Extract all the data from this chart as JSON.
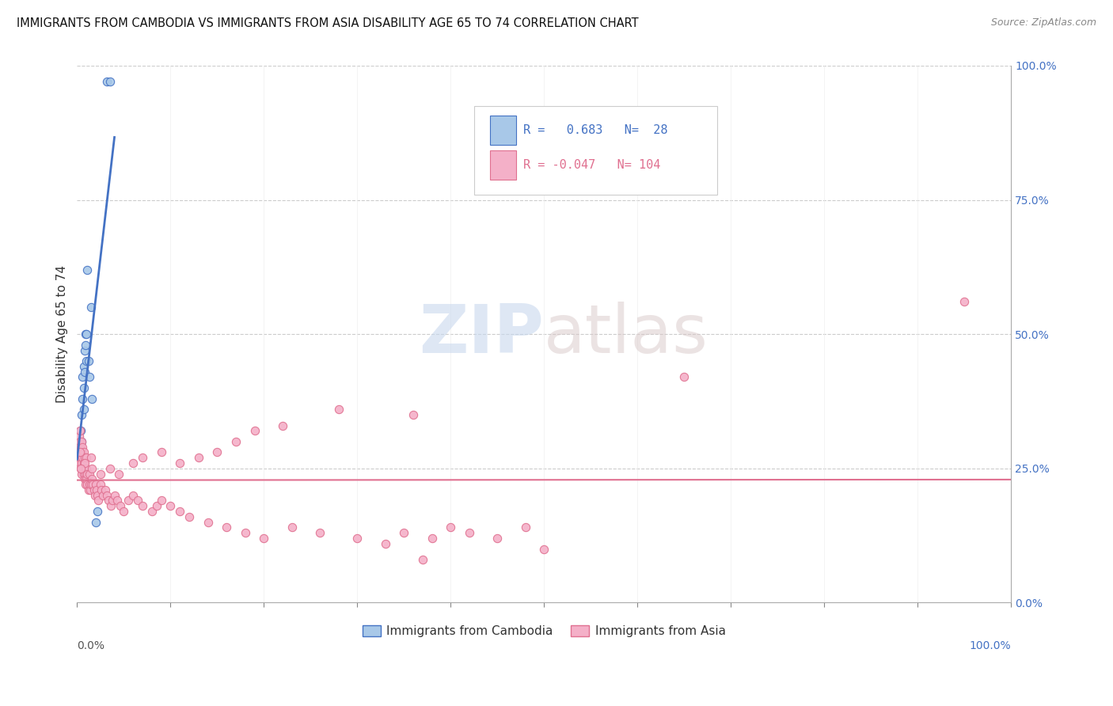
{
  "title": "IMMIGRANTS FROM CAMBODIA VS IMMIGRANTS FROM ASIA DISABILITY AGE 65 TO 74 CORRELATION CHART",
  "source": "Source: ZipAtlas.com",
  "ylabel": "Disability Age 65 to 74",
  "legend_labels": [
    "Immigrants from Cambodia",
    "Immigrants from Asia"
  ],
  "r1": 0.683,
  "n1": 28,
  "r2": -0.047,
  "n2": 104,
  "color_cambodia": "#a8c8e8",
  "color_asia": "#f4b0c8",
  "color_line_cambodia": "#4472c4",
  "color_line_asia": "#e07090",
  "background_color": "#ffffff",
  "xlim": [
    0.0,
    1.0
  ],
  "ylim": [
    0.0,
    1.0
  ],
  "cambodia_x": [
    0.003,
    0.003,
    0.003,
    0.004,
    0.004,
    0.005,
    0.005,
    0.005,
    0.006,
    0.006,
    0.007,
    0.007,
    0.007,
    0.008,
    0.008,
    0.009,
    0.009,
    0.01,
    0.01,
    0.011,
    0.012,
    0.013,
    0.015,
    0.016,
    0.02,
    0.022,
    0.032,
    0.035
  ],
  "cambodia_y": [
    0.27,
    0.3,
    0.28,
    0.29,
    0.32,
    0.35,
    0.3,
    0.28,
    0.38,
    0.42,
    0.44,
    0.4,
    0.36,
    0.47,
    0.43,
    0.48,
    0.5,
    0.45,
    0.5,
    0.62,
    0.45,
    0.42,
    0.55,
    0.38,
    0.15,
    0.17,
    0.97,
    0.97
  ],
  "asia_x": [
    0.001,
    0.001,
    0.002,
    0.002,
    0.002,
    0.003,
    0.003,
    0.003,
    0.003,
    0.004,
    0.004,
    0.004,
    0.005,
    0.005,
    0.005,
    0.005,
    0.006,
    0.006,
    0.006,
    0.007,
    0.007,
    0.007,
    0.008,
    0.008,
    0.008,
    0.009,
    0.009,
    0.01,
    0.01,
    0.01,
    0.011,
    0.011,
    0.012,
    0.013,
    0.013,
    0.014,
    0.015,
    0.016,
    0.016,
    0.017,
    0.018,
    0.019,
    0.02,
    0.021,
    0.022,
    0.023,
    0.025,
    0.026,
    0.028,
    0.03,
    0.032,
    0.034,
    0.036,
    0.038,
    0.04,
    0.043,
    0.046,
    0.05,
    0.055,
    0.06,
    0.065,
    0.07,
    0.08,
    0.085,
    0.09,
    0.1,
    0.11,
    0.12,
    0.14,
    0.16,
    0.18,
    0.2,
    0.23,
    0.26,
    0.3,
    0.33,
    0.35,
    0.38,
    0.4,
    0.42,
    0.45,
    0.48,
    0.5,
    0.36,
    0.28,
    0.22,
    0.19,
    0.17,
    0.15,
    0.13,
    0.11,
    0.09,
    0.07,
    0.06,
    0.045,
    0.035,
    0.025,
    0.015,
    0.008,
    0.004,
    0.003,
    0.37,
    0.65,
    0.95
  ],
  "asia_y": [
    0.28,
    0.3,
    0.27,
    0.29,
    0.31,
    0.26,
    0.28,
    0.3,
    0.32,
    0.25,
    0.27,
    0.29,
    0.24,
    0.26,
    0.28,
    0.3,
    0.25,
    0.27,
    0.29,
    0.24,
    0.26,
    0.28,
    0.23,
    0.25,
    0.27,
    0.22,
    0.24,
    0.23,
    0.25,
    0.27,
    0.22,
    0.24,
    0.21,
    0.22,
    0.24,
    0.21,
    0.22,
    0.23,
    0.25,
    0.22,
    0.21,
    0.2,
    0.22,
    0.21,
    0.2,
    0.19,
    0.22,
    0.21,
    0.2,
    0.21,
    0.2,
    0.19,
    0.18,
    0.19,
    0.2,
    0.19,
    0.18,
    0.17,
    0.19,
    0.2,
    0.19,
    0.18,
    0.17,
    0.18,
    0.19,
    0.18,
    0.17,
    0.16,
    0.15,
    0.14,
    0.13,
    0.12,
    0.14,
    0.13,
    0.12,
    0.11,
    0.13,
    0.12,
    0.14,
    0.13,
    0.12,
    0.14,
    0.1,
    0.35,
    0.36,
    0.33,
    0.32,
    0.3,
    0.28,
    0.27,
    0.26,
    0.28,
    0.27,
    0.26,
    0.24,
    0.25,
    0.24,
    0.27,
    0.26,
    0.25,
    0.28,
    0.08,
    0.42,
    0.56
  ]
}
